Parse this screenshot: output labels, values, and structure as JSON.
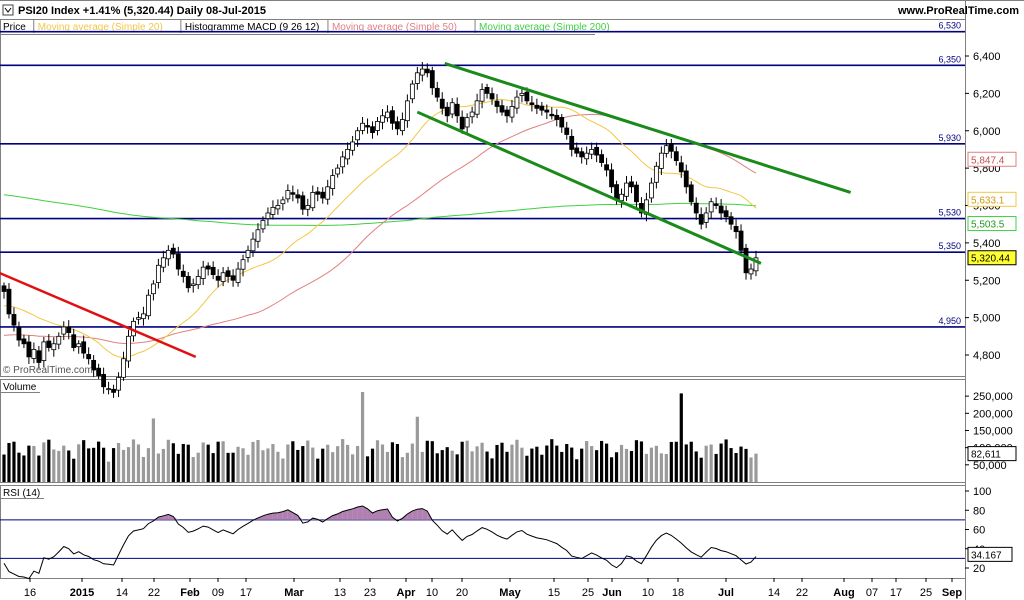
{
  "header": {
    "title": "PSI20 Index",
    "change": "+1.41%",
    "last": "(5,320.44)",
    "interval": "Daily",
    "date": "08-Jul-2015",
    "site": "www.ProRealTime.com",
    "watermark": "© ProRealTime.com"
  },
  "legend": [
    {
      "label": "Price",
      "color": "#000000"
    },
    {
      "label": "Moving average (Simple 20)",
      "color": "#f2c744"
    },
    {
      "label": "Histogramme MACD (9 26 12)",
      "color": "#000000"
    },
    {
      "label": "Moving average (Simple 50)",
      "color": "#e08080"
    },
    {
      "label": "Moving average (Simple 200)",
      "color": "#40d040"
    }
  ],
  "colors": {
    "bull": "#ffffff",
    "bear": "#000000",
    "ma20": "#f2c744",
    "ma50": "#e08080",
    "ma200": "#40d040",
    "channel": "#1a8a1a",
    "red_trend": "#e01010",
    "hline": "#000080",
    "vol_up": "#9a9a9a",
    "vol_down": "#000000",
    "rsi_line": "#000000",
    "rsi_fill": "#b080b0"
  },
  "chart_data": [
    {
      "type": "candlestick",
      "title": "PSI20 Index Daily",
      "y_ticks": [
        4800,
        5000,
        5200,
        5400,
        5600,
        5800,
        6000,
        6200,
        6400
      ],
      "y_tick_labels": [
        "4,800",
        "5,000",
        "5,200",
        "5,400",
        "5,600",
        "5,800",
        "6,000",
        "6,200",
        "6,400"
      ],
      "horizontal_levels": [
        {
          "value": 6530,
          "label": "6,530"
        },
        {
          "value": 6350,
          "label": "6,350"
        },
        {
          "value": 5930,
          "label": "5,930"
        },
        {
          "value": 5530,
          "label": "5,530"
        },
        {
          "value": 5350,
          "label": "5,350"
        },
        {
          "value": 4950,
          "label": "4,950"
        }
      ],
      "value_tags": [
        {
          "label": "5,847.4",
          "value": 5847.4,
          "series": "ma50"
        },
        {
          "label": "5,633.1",
          "value": 5633.1,
          "series": "ma20"
        },
        {
          "label": "5,503.5",
          "value": 5503.5,
          "series": "ma200"
        },
        {
          "label": "5,320.44",
          "value": 5320.44,
          "series": "price"
        }
      ],
      "closes": [
        5140,
        5020,
        4960,
        4880,
        4860,
        4790,
        4830,
        4760,
        4870,
        4840,
        4860,
        4900,
        4950,
        4920,
        4840,
        4860,
        4810,
        4780,
        4720,
        4690,
        4630,
        4620,
        4600,
        4680,
        4780,
        4900,
        4980,
        5000,
        5020,
        5120,
        5180,
        5280,
        5320,
        5360,
        5340,
        5260,
        5220,
        5160,
        5180,
        5220,
        5270,
        5260,
        5230,
        5200,
        5240,
        5220,
        5200,
        5260,
        5310,
        5360,
        5420,
        5470,
        5520,
        5560,
        5590,
        5600,
        5630,
        5680,
        5660,
        5640,
        5580,
        5600,
        5670,
        5660,
        5640,
        5700,
        5760,
        5800,
        5860,
        5900,
        5940,
        6000,
        6040,
        6020,
        5990,
        6050,
        6080,
        6100,
        6040,
        6010,
        6060,
        6160,
        6250,
        6310,
        6330,
        6310,
        6230,
        6180,
        6120,
        6080,
        6150,
        6080,
        6010,
        6070,
        6100,
        6160,
        6220,
        6200,
        6170,
        6130,
        6100,
        6080,
        6130,
        6180,
        6200,
        6160,
        6140,
        6120,
        6110,
        6100,
        6080,
        6060,
        6020,
        5980,
        5900,
        5880,
        5860,
        5880,
        5900,
        5870,
        5830,
        5790,
        5700,
        5630,
        5660,
        5720,
        5700,
        5620,
        5560,
        5630,
        5720,
        5810,
        5880,
        5920,
        5890,
        5840,
        5780,
        5700,
        5620,
        5560,
        5500,
        5560,
        5620,
        5600,
        5560,
        5540,
        5500,
        5460,
        5360,
        5240,
        5260,
        5320
      ],
      "x_tick_labels": [
        "16",
        "2015",
        "14",
        "22",
        "Feb",
        "09",
        "17",
        "Mar",
        "13",
        "23",
        "Apr",
        "10",
        "20",
        "May",
        "15",
        "25",
        "Jun",
        "10",
        "18",
        "Jul",
        "14",
        "22",
        "Aug",
        "07",
        "17",
        "25",
        "Sep"
      ]
    },
    {
      "type": "bar",
      "title": "Volume",
      "y_tick_labels": [
        "250,000",
        "200,000",
        "150,000",
        "100,000",
        "50,000"
      ],
      "y_ticks": [
        250000,
        200000,
        150000,
        100000,
        50000
      ],
      "last_tag": "82,611",
      "last_value": 82611
    },
    {
      "type": "line",
      "title": "RSI (14)",
      "y_ticks": [
        100,
        80,
        60,
        40,
        20
      ],
      "y_tick_labels": [
        "100",
        "80",
        "60",
        "40",
        "20"
      ],
      "levels": [
        70,
        30
      ],
      "last_tag": "34.167",
      "last_value": 34.167
    }
  ]
}
